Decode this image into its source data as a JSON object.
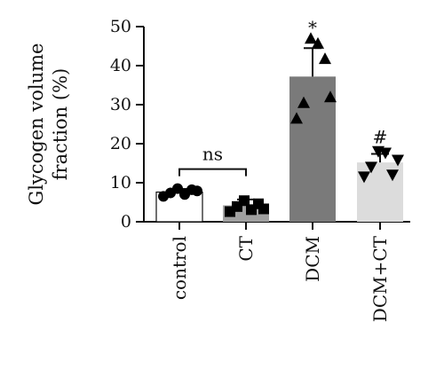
{
  "chart_data": {
    "type": "bar",
    "title": "",
    "xlabel": "",
    "ylabel": "Glycogen volume fraction (%)",
    "ylabel_lines": [
      "Glycogen volume",
      "fraction (%)"
    ],
    "ylim": [
      0,
      50
    ],
    "yticks": [
      0,
      10,
      20,
      30,
      40,
      50
    ],
    "grid": false,
    "legend": "none",
    "categories": [
      "control",
      "CT",
      "DCM",
      "DCM+CT"
    ],
    "series": [
      {
        "values": [
          7.6,
          4.2,
          37.2,
          15.2
        ],
        "error_up": [
          0.8,
          1.5,
          7.3,
          2.2
        ],
        "bar_colors": [
          "#ffffff",
          "#a0a0a0",
          "#7a7a7a",
          "#dcdcdc"
        ],
        "marker_shapes": [
          "circle",
          "square",
          "triangle-up",
          "triangle-down"
        ],
        "points": [
          [
            6.5,
            7.4,
            8.5,
            7.0,
            8.2,
            7.9
          ],
          [
            2.6,
            3.9,
            5.4,
            3.1,
            4.6,
            3.3
          ],
          [
            26.5,
            30.5,
            47.0,
            45.7,
            41.8,
            32.0
          ],
          [
            11.5,
            14.0,
            18.0,
            17.6,
            12.0,
            15.8
          ]
        ]
      }
    ],
    "annotations": [
      {
        "text": "ns",
        "type": "bracket",
        "between": [
          "control",
          "CT"
        ],
        "y": 13.5
      },
      {
        "text": "*",
        "category": "DCM",
        "y": 49.5
      },
      {
        "text": "#",
        "category": "DCM+CT",
        "y": 21.5
      }
    ]
  }
}
